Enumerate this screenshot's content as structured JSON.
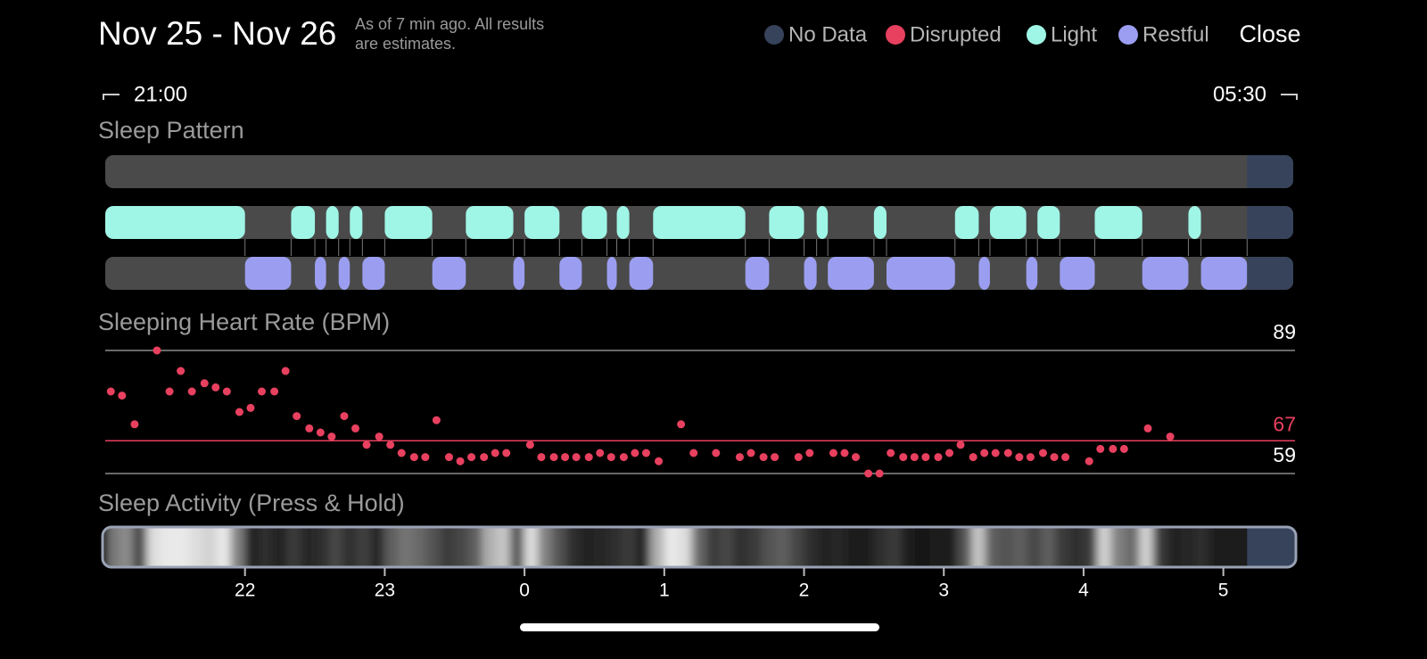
{
  "header": {
    "title": "Nov 25 - Nov 26",
    "note_lines": [
      "As of 7 min ago. All results",
      "are estimates."
    ],
    "close": "Close"
  },
  "legend": [
    {
      "name": "No Data",
      "color": "#36435a"
    },
    {
      "name": "Disrupted",
      "color": "#e8405f"
    },
    {
      "name": "Light",
      "color": "#9ff5e6"
    },
    {
      "name": "Restful",
      "color": "#9b9ef0"
    }
  ],
  "chart_data": [
    {
      "type": "timeline",
      "title": "Sleep Pattern",
      "range_labels": [
        "21:00",
        "05:30"
      ],
      "xlim": [
        21,
        29.5
      ],
      "rows": [
        {
          "segments": []
        },
        {
          "segments": [
            [
              21.0,
              22.0
            ],
            [
              22.33,
              22.5
            ],
            [
              22.58,
              22.67
            ],
            [
              22.75,
              22.84
            ],
            [
              23.0,
              23.34
            ],
            [
              23.58,
              23.92
            ],
            [
              24.0,
              24.25
            ],
            [
              24.41,
              24.59
            ],
            [
              24.66,
              24.75
            ],
            [
              24.92,
              25.58
            ],
            [
              25.75,
              26.0
            ],
            [
              26.09,
              26.17
            ],
            [
              26.5,
              26.59
            ],
            [
              27.08,
              27.25
            ],
            [
              27.33,
              27.59
            ],
            [
              27.67,
              27.83
            ],
            [
              28.08,
              28.42
            ],
            [
              28.75,
              28.84
            ]
          ]
        },
        {
          "segments": [
            [
              22.0,
              22.33
            ],
            [
              22.5,
              22.58
            ],
            [
              22.67,
              22.75
            ],
            [
              22.84,
              23.0
            ],
            [
              23.34,
              23.58
            ],
            [
              23.92,
              24.0
            ],
            [
              24.25,
              24.41
            ],
            [
              24.59,
              24.66
            ],
            [
              24.75,
              24.92
            ],
            [
              25.58,
              25.75
            ],
            [
              26.0,
              26.09
            ],
            [
              26.17,
              26.5
            ],
            [
              26.59,
              27.08
            ],
            [
              27.25,
              27.33
            ],
            [
              27.59,
              27.67
            ],
            [
              27.83,
              28.08
            ],
            [
              28.42,
              28.75
            ],
            [
              28.84,
              29.17
            ]
          ]
        }
      ],
      "no_data": [
        [
          29.17,
          29.5
        ]
      ]
    },
    {
      "type": "scatter",
      "title": "Sleeping Heart Rate (BPM)",
      "color": "#e8405f",
      "xlim": [
        21,
        29.5
      ],
      "ylim": [
        59,
        89
      ],
      "yticks": [
        59,
        89
      ],
      "average": {
        "value": 67,
        "color": "#e8405f"
      },
      "x": [
        21.04,
        21.12,
        21.21,
        21.37,
        21.46,
        21.54,
        21.62,
        21.71,
        21.79,
        21.87,
        21.96,
        22.04,
        22.12,
        22.21,
        22.29,
        22.37,
        22.46,
        22.54,
        22.62,
        22.71,
        22.79,
        22.87,
        22.96,
        23.04,
        23.12,
        23.21,
        23.29,
        23.37,
        23.46,
        23.54,
        23.62,
        23.71,
        23.79,
        23.87,
        24.04,
        24.12,
        24.21,
        24.29,
        24.37,
        24.46,
        24.54,
        24.62,
        24.71,
        24.79,
        24.87,
        24.96,
        25.12,
        25.21,
        25.37,
        25.54,
        25.62,
        25.71,
        25.79,
        25.96,
        26.04,
        26.21,
        26.29,
        26.37,
        26.46,
        26.54,
        26.62,
        26.71,
        26.79,
        26.87,
        26.96,
        27.04,
        27.12,
        27.21,
        27.29,
        27.37,
        27.46,
        27.54,
        27.62,
        27.71,
        27.79,
        27.87,
        28.04,
        28.12,
        28.21,
        28.29,
        28.46,
        28.62
      ],
      "values": [
        79,
        78,
        71,
        89,
        79,
        84,
        79,
        81,
        80,
        79,
        74,
        75,
        79,
        79,
        84,
        73,
        70,
        69,
        68,
        73,
        70,
        66,
        68,
        66,
        64,
        63,
        63,
        72,
        63,
        62,
        63,
        63,
        64,
        64,
        66,
        63,
        63,
        63,
        63,
        63,
        64,
        63,
        63,
        64,
        64,
        62,
        71,
        64,
        64,
        63,
        64,
        63,
        63,
        63,
        64,
        64,
        64,
        63,
        59,
        59,
        64,
        63,
        63,
        63,
        63,
        64,
        66,
        63,
        64,
        64,
        64,
        63,
        63,
        64,
        63,
        63,
        62,
        65,
        65,
        65,
        70,
        68
      ]
    },
    {
      "type": "heatmap",
      "title": "Sleep Activity (Press & Hold)",
      "xlim": [
        21,
        29.5
      ],
      "xticks": [
        22,
        23,
        {
          "value": 24,
          "label": "0"
        },
        {
          "value": 25,
          "label": "1"
        },
        {
          "value": 26,
          "label": "2"
        },
        {
          "value": 27,
          "label": "3"
        },
        {
          "value": 28,
          "label": "4"
        },
        {
          "value": 29,
          "label": "5"
        }
      ],
      "x": [
        21.0,
        21.1,
        21.2,
        21.3,
        21.4,
        21.5,
        21.6,
        21.7,
        21.8,
        21.9,
        22.0,
        22.1,
        22.2,
        22.3,
        22.4,
        22.5,
        22.6,
        22.7,
        22.8,
        22.9,
        23.0,
        23.1,
        23.2,
        23.3,
        23.4,
        23.5,
        23.6,
        23.7,
        23.8,
        23.9,
        24.0,
        24.1,
        24.2,
        24.3,
        24.4,
        24.5,
        24.6,
        24.7,
        24.8,
        24.9,
        25.0,
        25.1,
        25.2,
        25.3,
        25.4,
        25.5,
        25.6,
        25.7,
        25.8,
        25.9,
        26.0,
        26.1,
        26.2,
        26.3,
        26.4,
        26.5,
        26.6,
        26.7,
        26.8,
        26.9,
        27.0,
        27.1,
        27.2,
        27.3,
        27.4,
        27.5,
        27.6,
        27.7,
        27.8,
        27.9,
        28.0,
        28.1,
        28.2,
        28.3,
        28.4,
        28.5,
        28.6,
        28.7,
        28.8,
        28.9,
        29.0,
        29.1
      ],
      "values": [
        0.45,
        0.55,
        0.25,
        0.9,
        0.95,
        0.95,
        0.9,
        0.85,
        0.95,
        0.5,
        0.1,
        0.15,
        0.1,
        0.2,
        0.12,
        0.15,
        0.25,
        0.15,
        0.22,
        0.12,
        0.35,
        0.45,
        0.4,
        0.3,
        0.2,
        0.25,
        0.35,
        0.7,
        0.8,
        0.3,
        0.9,
        0.5,
        0.3,
        0.15,
        0.1,
        0.12,
        0.15,
        0.2,
        0.1,
        0.7,
        0.95,
        0.9,
        0.4,
        0.2,
        0.25,
        0.15,
        0.2,
        0.3,
        0.35,
        0.25,
        0.15,
        0.1,
        0.12,
        0.08,
        0.08,
        0.15,
        0.2,
        0.06,
        0.05,
        0.06,
        0.08,
        0.3,
        0.8,
        0.35,
        0.3,
        0.35,
        0.25,
        0.35,
        0.2,
        0.15,
        0.2,
        0.85,
        0.5,
        0.4,
        0.85,
        0.2,
        0.1,
        0.12,
        0.15,
        0.08,
        0.06,
        0.06
      ],
      "no_data": [
        [
          29.17,
          29.5
        ]
      ]
    }
  ]
}
